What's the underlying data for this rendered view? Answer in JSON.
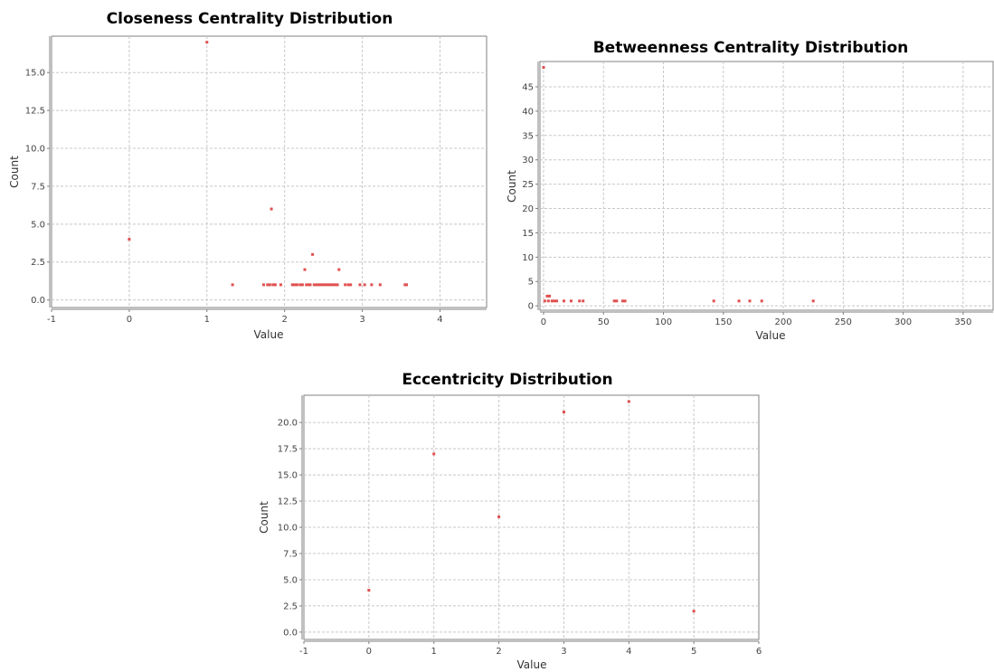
{
  "colors": {
    "point": "#e05050",
    "grid": "#c8c8c8",
    "frame": "#808080"
  },
  "chart_data": [
    {
      "id": "closeness",
      "type": "scatter",
      "title": "Closeness Centrality Distribution",
      "xlabel": "Value",
      "ylabel": "Count",
      "xlim": [
        -1,
        4.6
      ],
      "ylim": [
        -0.5,
        17.4
      ],
      "xticks": [
        -1,
        0,
        1,
        2,
        3,
        4
      ],
      "xtick_labels": [
        "-1",
        "0",
        "1",
        "2",
        "3",
        "4"
      ],
      "yticks": [
        0,
        2.5,
        5,
        7.5,
        10,
        12.5,
        15
      ],
      "ytick_labels": [
        "0.0",
        "2.5",
        "5.0",
        "7.5",
        "10.0",
        "12.5",
        "15.0"
      ],
      "grid": true,
      "legend": "none",
      "points": [
        [
          0,
          4
        ],
        [
          1,
          17
        ],
        [
          1.33,
          1
        ],
        [
          1.73,
          1
        ],
        [
          1.78,
          1
        ],
        [
          1.83,
          6
        ],
        [
          1.81,
          1
        ],
        [
          1.85,
          1
        ],
        [
          1.88,
          1
        ],
        [
          1.95,
          1
        ],
        [
          2.1,
          1
        ],
        [
          2.13,
          1
        ],
        [
          2.16,
          1
        ],
        [
          2.2,
          1
        ],
        [
          2.23,
          1
        ],
        [
          2.26,
          2
        ],
        [
          2.28,
          1
        ],
        [
          2.31,
          1
        ],
        [
          2.33,
          1
        ],
        [
          2.36,
          3
        ],
        [
          2.38,
          1
        ],
        [
          2.41,
          1
        ],
        [
          2.44,
          1
        ],
        [
          2.47,
          1
        ],
        [
          2.5,
          1
        ],
        [
          2.53,
          1
        ],
        [
          2.56,
          1
        ],
        [
          2.59,
          1
        ],
        [
          2.62,
          1
        ],
        [
          2.65,
          1
        ],
        [
          2.68,
          1
        ],
        [
          2.7,
          2
        ],
        [
          2.78,
          1
        ],
        [
          2.82,
          1
        ],
        [
          2.85,
          1
        ],
        [
          2.97,
          1
        ],
        [
          3.03,
          1
        ],
        [
          3.12,
          1
        ],
        [
          3.23,
          1
        ],
        [
          3.55,
          1
        ],
        [
          3.57,
          1
        ]
      ]
    },
    {
      "id": "betweenness",
      "type": "scatter",
      "title": "Betweenness Centrality Distribution",
      "xlabel": "Value",
      "ylabel": "Count",
      "xlim": [
        -3,
        375
      ],
      "ylim": [
        -0.9,
        50.2
      ],
      "xticks": [
        0,
        50,
        100,
        150,
        200,
        250,
        300,
        350
      ],
      "xtick_labels": [
        "0",
        "50",
        "100",
        "150",
        "200",
        "250",
        "300",
        "350"
      ],
      "yticks": [
        0,
        5,
        10,
        15,
        20,
        25,
        30,
        35,
        40,
        45
      ],
      "ytick_labels": [
        "0",
        "5",
        "10",
        "15",
        "20",
        "25",
        "30",
        "35",
        "40",
        "45"
      ],
      "grid": true,
      "legend": "none",
      "points": [
        [
          0,
          49
        ],
        [
          1,
          1
        ],
        [
          3,
          2
        ],
        [
          4,
          1
        ],
        [
          5,
          2
        ],
        [
          7,
          1
        ],
        [
          9,
          1
        ],
        [
          11,
          1
        ],
        [
          17,
          1
        ],
        [
          23,
          1
        ],
        [
          30,
          1
        ],
        [
          33,
          1
        ],
        [
          59,
          1
        ],
        [
          61,
          1
        ],
        [
          66,
          1
        ],
        [
          68,
          1
        ],
        [
          142,
          1
        ],
        [
          163,
          1
        ],
        [
          172,
          1
        ],
        [
          182,
          1
        ],
        [
          225,
          1
        ]
      ]
    },
    {
      "id": "eccentricity",
      "type": "scatter",
      "title": "Eccentricity Distribution",
      "xlabel": "Value",
      "ylabel": "Count",
      "xlim": [
        -1,
        6
      ],
      "ylim": [
        -0.7,
        22.6
      ],
      "xticks": [
        -1,
        0,
        1,
        2,
        3,
        4,
        5,
        6
      ],
      "xtick_labels": [
        "-1",
        "0",
        "1",
        "2",
        "3",
        "4",
        "5",
        "6"
      ],
      "yticks": [
        0,
        2.5,
        5,
        7.5,
        10,
        12.5,
        15,
        17.5,
        20
      ],
      "ytick_labels": [
        "0.0",
        "2.5",
        "5.0",
        "7.5",
        "10.0",
        "12.5",
        "15.0",
        "17.5",
        "20.0"
      ],
      "grid": true,
      "legend": "none",
      "points": [
        [
          0,
          4
        ],
        [
          1,
          17
        ],
        [
          2,
          11
        ],
        [
          3,
          21
        ],
        [
          4,
          22
        ],
        [
          5,
          2
        ]
      ]
    }
  ]
}
